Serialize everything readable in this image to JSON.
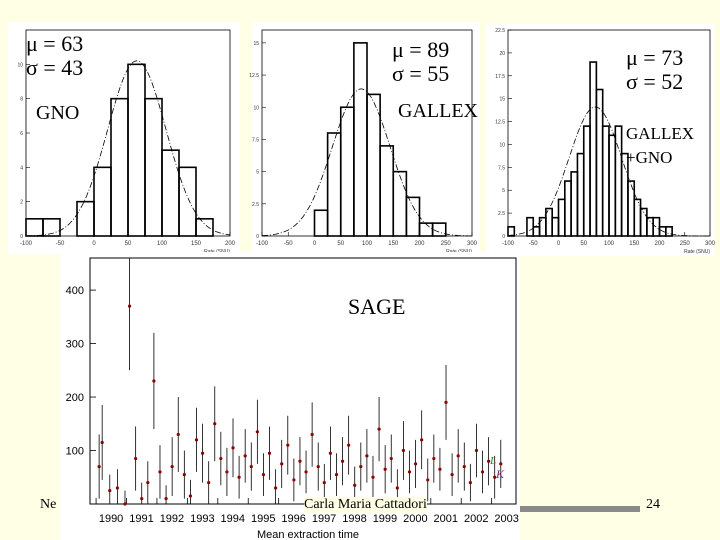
{
  "panels": {
    "gno": {
      "mu_text": "μ = 63",
      "sigma_text": "σ = 43",
      "label": "GNO",
      "xlabel": "Rate (SNU)"
    },
    "gallex": {
      "mu_text": "μ = 89",
      "sigma_text": "σ = 55",
      "label": "GALLEX",
      "xlabel": "Rate (SNU)"
    },
    "combined": {
      "mu_text": "μ = 73",
      "sigma_text": "σ = 52",
      "label_line1": "GALLEX",
      "label_line2": "+GNO",
      "xlabel": "Rate (SNU)"
    },
    "sage": {
      "label": "SAGE",
      "xlabel": "Mean extraction time"
    }
  },
  "footer": {
    "left": "Ne",
    "center": "Carla Maria Cattadori",
    "page": "24",
    "logo_text": "L K"
  },
  "chart_data": [
    {
      "type": "bar",
      "name": "GNO",
      "xlabel": "Rate (SNU)",
      "xlim": [
        -100,
        200
      ],
      "ylim": [
        0,
        12
      ],
      "xticks": [
        -100,
        -50,
        0,
        50,
        100,
        150,
        200
      ],
      "yticks": [
        0,
        2,
        4,
        6,
        8,
        10
      ],
      "bin_edges": [
        -100,
        -75,
        -50,
        -25,
        0,
        25,
        50,
        75,
        100,
        125,
        150,
        175,
        200
      ],
      "values": [
        1,
        1,
        0,
        2,
        4,
        8,
        10,
        8,
        5,
        4,
        1,
        0
      ],
      "gaussian": {
        "mu": 63,
        "sigma": 43
      }
    },
    {
      "type": "bar",
      "name": "GALLEX",
      "xlabel": "Rate (SNU)",
      "xlim": [
        -100,
        300
      ],
      "ylim": [
        0,
        16
      ],
      "xticks": [
        -100,
        -50,
        0,
        50,
        100,
        150,
        200,
        250,
        300
      ],
      "yticks": [
        0,
        2.5,
        5,
        7.5,
        10,
        12.5,
        15
      ],
      "bin_edges": [
        -100,
        -75,
        -50,
        -25,
        0,
        25,
        50,
        75,
        100,
        125,
        150,
        175,
        200,
        225,
        250,
        275,
        300
      ],
      "values": [
        0,
        0,
        0,
        0,
        2,
        8,
        10,
        15,
        11,
        7,
        5,
        3,
        1,
        1,
        0,
        0
      ],
      "gaussian": {
        "mu": 89,
        "sigma": 55
      }
    },
    {
      "type": "bar",
      "name": "GALLEX+GNO",
      "xlabel": "Rate (SNU)",
      "xlim": [
        -100,
        300
      ],
      "ylim": [
        0,
        22.5
      ],
      "xticks": [
        -100,
        -50,
        0,
        50,
        100,
        150,
        200,
        250,
        300
      ],
      "yticks": [
        0,
        2.5,
        5,
        7.5,
        10,
        12.5,
        15,
        17.5,
        20,
        22.5
      ],
      "bin_edges": [
        -100,
        -87.5,
        -75,
        -62.5,
        -50,
        -37.5,
        -25,
        -12.5,
        0,
        12.5,
        25,
        37.5,
        50,
        62.5,
        75,
        87.5,
        100,
        112.5,
        125,
        137.5,
        150,
        162.5,
        175,
        187.5,
        200,
        212.5,
        225,
        237.5,
        250,
        262.5,
        275,
        287.5,
        300
      ],
      "values": [
        1,
        0,
        0,
        2,
        1,
        2,
        3,
        2,
        4,
        6,
        7,
        9,
        12,
        19,
        16,
        12,
        11,
        12,
        9,
        6,
        4,
        3,
        2,
        2,
        1,
        1,
        0,
        0,
        0,
        0,
        0,
        0
      ],
      "gaussian": {
        "mu": 73,
        "sigma": 52
      }
    },
    {
      "type": "scatter",
      "name": "SAGE",
      "xlabel": "Mean extraction time",
      "xlim": [
        1989.8,
        2003.8
      ],
      "ylim": [
        0,
        460
      ],
      "xticks": [
        1990,
        1991,
        1992,
        1993,
        1994,
        1995,
        1996,
        1997,
        1998,
        1999,
        2000,
        2001,
        2002,
        2003
      ],
      "yticks": [
        100,
        200,
        300,
        400
      ],
      "points": [
        {
          "x": 1990.1,
          "y": 70,
          "err": 60
        },
        {
          "x": 1990.2,
          "y": 115,
          "err": 70
        },
        {
          "x": 1990.45,
          "y": 25,
          "err": 30
        },
        {
          "x": 1990.7,
          "y": 30,
          "err": 35
        },
        {
          "x": 1990.95,
          "y": 0,
          "err": 25
        },
        {
          "x": 1991.1,
          "y": 370,
          "err": 120
        },
        {
          "x": 1991.3,
          "y": 85,
          "err": 60
        },
        {
          "x": 1991.5,
          "y": 10,
          "err": 30
        },
        {
          "x": 1991.7,
          "y": 40,
          "err": 40
        },
        {
          "x": 1991.9,
          "y": 230,
          "err": 90
        },
        {
          "x": 1992.1,
          "y": 60,
          "err": 50
        },
        {
          "x": 1992.3,
          "y": 10,
          "err": 25
        },
        {
          "x": 1992.5,
          "y": 70,
          "err": 55
        },
        {
          "x": 1992.7,
          "y": 130,
          "err": 70
        },
        {
          "x": 1992.9,
          "y": 55,
          "err": 45
        },
        {
          "x": 1993.1,
          "y": 15,
          "err": 30
        },
        {
          "x": 1993.3,
          "y": 120,
          "err": 60
        },
        {
          "x": 1993.5,
          "y": 95,
          "err": 55
        },
        {
          "x": 1993.7,
          "y": 40,
          "err": 40
        },
        {
          "x": 1993.9,
          "y": 150,
          "err": 70
        },
        {
          "x": 1994.1,
          "y": 85,
          "err": 50
        },
        {
          "x": 1994.3,
          "y": 60,
          "err": 45
        },
        {
          "x": 1994.5,
          "y": 105,
          "err": 55
        },
        {
          "x": 1994.7,
          "y": 50,
          "err": 40
        },
        {
          "x": 1994.9,
          "y": 90,
          "err": 50
        },
        {
          "x": 1995.1,
          "y": 70,
          "err": 45
        },
        {
          "x": 1995.3,
          "y": 135,
          "err": 60
        },
        {
          "x": 1995.5,
          "y": 55,
          "err": 40
        },
        {
          "x": 1995.7,
          "y": 95,
          "err": 50
        },
        {
          "x": 1995.9,
          "y": 30,
          "err": 35
        },
        {
          "x": 1996.1,
          "y": 75,
          "err": 45
        },
        {
          "x": 1996.3,
          "y": 110,
          "err": 55
        },
        {
          "x": 1996.5,
          "y": 45,
          "err": 40
        },
        {
          "x": 1996.7,
          "y": 80,
          "err": 45
        },
        {
          "x": 1996.9,
          "y": 60,
          "err": 40
        },
        {
          "x": 1997.1,
          "y": 130,
          "err": 60
        },
        {
          "x": 1997.3,
          "y": 70,
          "err": 45
        },
        {
          "x": 1997.5,
          "y": 40,
          "err": 35
        },
        {
          "x": 1997.7,
          "y": 95,
          "err": 50
        },
        {
          "x": 1997.9,
          "y": 55,
          "err": 40
        },
        {
          "x": 1998.1,
          "y": 80,
          "err": 45
        },
        {
          "x": 1998.3,
          "y": 110,
          "err": 55
        },
        {
          "x": 1998.5,
          "y": 35,
          "err": 35
        },
        {
          "x": 1998.7,
          "y": 70,
          "err": 45
        },
        {
          "x": 1998.9,
          "y": 90,
          "err": 50
        },
        {
          "x": 1999.1,
          "y": 50,
          "err": 40
        },
        {
          "x": 1999.3,
          "y": 140,
          "err": 60
        },
        {
          "x": 1999.5,
          "y": 65,
          "err": 45
        },
        {
          "x": 1999.7,
          "y": 85,
          "err": 45
        },
        {
          "x": 1999.9,
          "y": 30,
          "err": 35
        },
        {
          "x": 2000.1,
          "y": 100,
          "err": 55
        },
        {
          "x": 2000.3,
          "y": 60,
          "err": 40
        },
        {
          "x": 2000.5,
          "y": 75,
          "err": 45
        },
        {
          "x": 2000.7,
          "y": 120,
          "err": 55
        },
        {
          "x": 2000.9,
          "y": 45,
          "err": 40
        },
        {
          "x": 2001.1,
          "y": 85,
          "err": 45
        },
        {
          "x": 2001.3,
          "y": 65,
          "err": 40
        },
        {
          "x": 2001.5,
          "y": 190,
          "err": 70
        },
        {
          "x": 2001.7,
          "y": 55,
          "err": 40
        },
        {
          "x": 2001.9,
          "y": 90,
          "err": 50
        },
        {
          "x": 2002.1,
          "y": 70,
          "err": 45
        },
        {
          "x": 2002.3,
          "y": 40,
          "err": 35
        },
        {
          "x": 2002.5,
          "y": 100,
          "err": 50
        },
        {
          "x": 2002.7,
          "y": 60,
          "err": 40
        },
        {
          "x": 2002.9,
          "y": 80,
          "err": 45
        },
        {
          "x": 2003.1,
          "y": 50,
          "err": 40
        },
        {
          "x": 2003.3,
          "y": 75,
          "err": 45
        }
      ]
    }
  ]
}
